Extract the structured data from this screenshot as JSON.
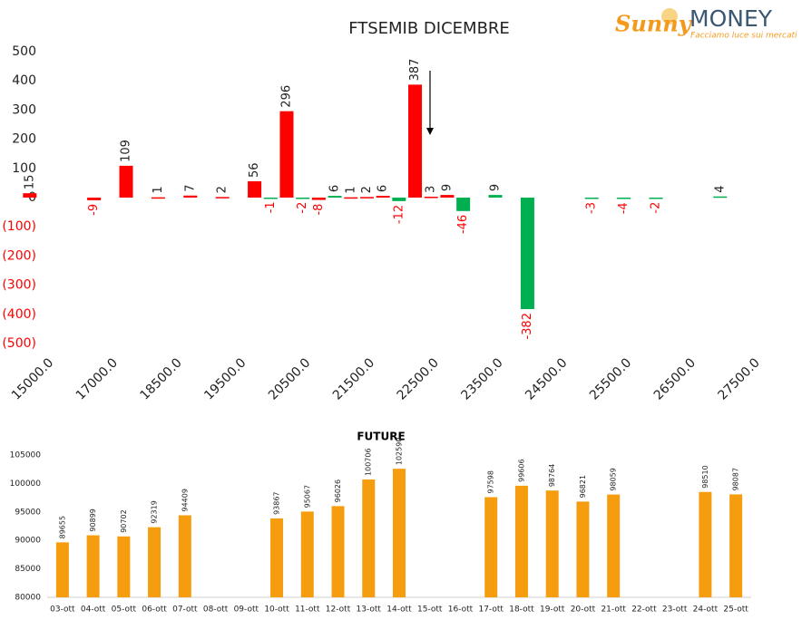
{
  "logo": {
    "script": "Sunny",
    "brand": "MONEY",
    "tagline": "Facciamo luce sui mercati"
  },
  "chart_data": [
    {
      "type": "bar",
      "title": "FTSEMIB DICEMBRE",
      "categories": [
        null,
        "15000.0",
        null,
        null,
        null,
        "17000.0",
        null,
        null,
        null,
        "18500.0",
        null,
        null,
        null,
        "19500.0",
        null,
        null,
        null,
        "20500.0",
        null,
        null,
        null,
        "21500.0",
        null,
        null,
        null,
        "22500.0",
        null,
        null,
        null,
        "23500.0",
        null,
        null,
        null,
        "24500.0",
        null,
        null,
        null,
        "25500.0",
        null,
        null,
        null,
        "26500.0",
        null,
        null,
        null,
        "27500.0"
      ],
      "values": [
        15,
        null,
        null,
        null,
        -9,
        null,
        109,
        null,
        1,
        null,
        7,
        null,
        2,
        null,
        56,
        -1,
        296,
        -2,
        -8,
        6,
        1,
        2,
        6,
        -12,
        387,
        3,
        9,
        -46,
        null,
        9,
        null,
        -382,
        null,
        null,
        null,
        -3,
        null,
        -4,
        null,
        -2,
        null,
        null,
        null,
        4,
        null,
        null
      ],
      "colors": [
        "#ff0000",
        null,
        null,
        null,
        "#ff0000",
        null,
        "#ff0000",
        null,
        "#ff0000",
        null,
        "#ff0000",
        null,
        "#ff0000",
        null,
        "#ff0000",
        "#00b050",
        "#ff0000",
        "#00b050",
        "#ff0000",
        "#00b050",
        "#ff0000",
        "#ff0000",
        "#ff0000",
        "#00b050",
        "#ff0000",
        "#ff0000",
        "#ff0000",
        "#00b050",
        null,
        "#00b050",
        null,
        "#00b050",
        null,
        null,
        null,
        "#00b050",
        null,
        "#00b050",
        null,
        "#00b050",
        null,
        null,
        null,
        "#00b050",
        null,
        null
      ],
      "negative_color": "#ff0000",
      "ylim": [
        -500,
        500
      ],
      "yticks": [
        500,
        400,
        300,
        200,
        100,
        0,
        {
          "value": -100,
          "label": "(100)"
        },
        {
          "value": -200,
          "label": "(200)"
        },
        {
          "value": -300,
          "label": "(300)"
        },
        {
          "value": -400,
          "label": "(400)"
        },
        {
          "value": -500,
          "label": "(500)"
        }
      ],
      "grid": false
    },
    {
      "type": "bar",
      "title": "FUTURE",
      "categories": [
        "03-ott",
        "04-ott",
        "05-ott",
        "06-ott",
        "07-ott",
        "08-ott",
        "09-ott",
        "10-ott",
        "11-ott",
        "12-ott",
        "13-ott",
        "14-ott",
        "15-ott",
        "16-ott",
        "17-ott",
        "18-ott",
        "19-ott",
        "20-ott",
        "21-ott",
        "22-ott",
        "23-ott",
        "24-ott",
        "25-ott"
      ],
      "values": [
        89655,
        90899,
        90702,
        92319,
        94409,
        null,
        null,
        93867,
        95067,
        96026,
        100706,
        102590,
        null,
        null,
        97598,
        99606,
        98764,
        96821,
        98059,
        null,
        null,
        98510,
        98087
      ],
      "color": "#f59d0e",
      "ylim": [
        80000,
        105000
      ],
      "yticks": [
        80000,
        85000,
        90000,
        95000,
        100000,
        105000
      ],
      "grid": false
    }
  ]
}
